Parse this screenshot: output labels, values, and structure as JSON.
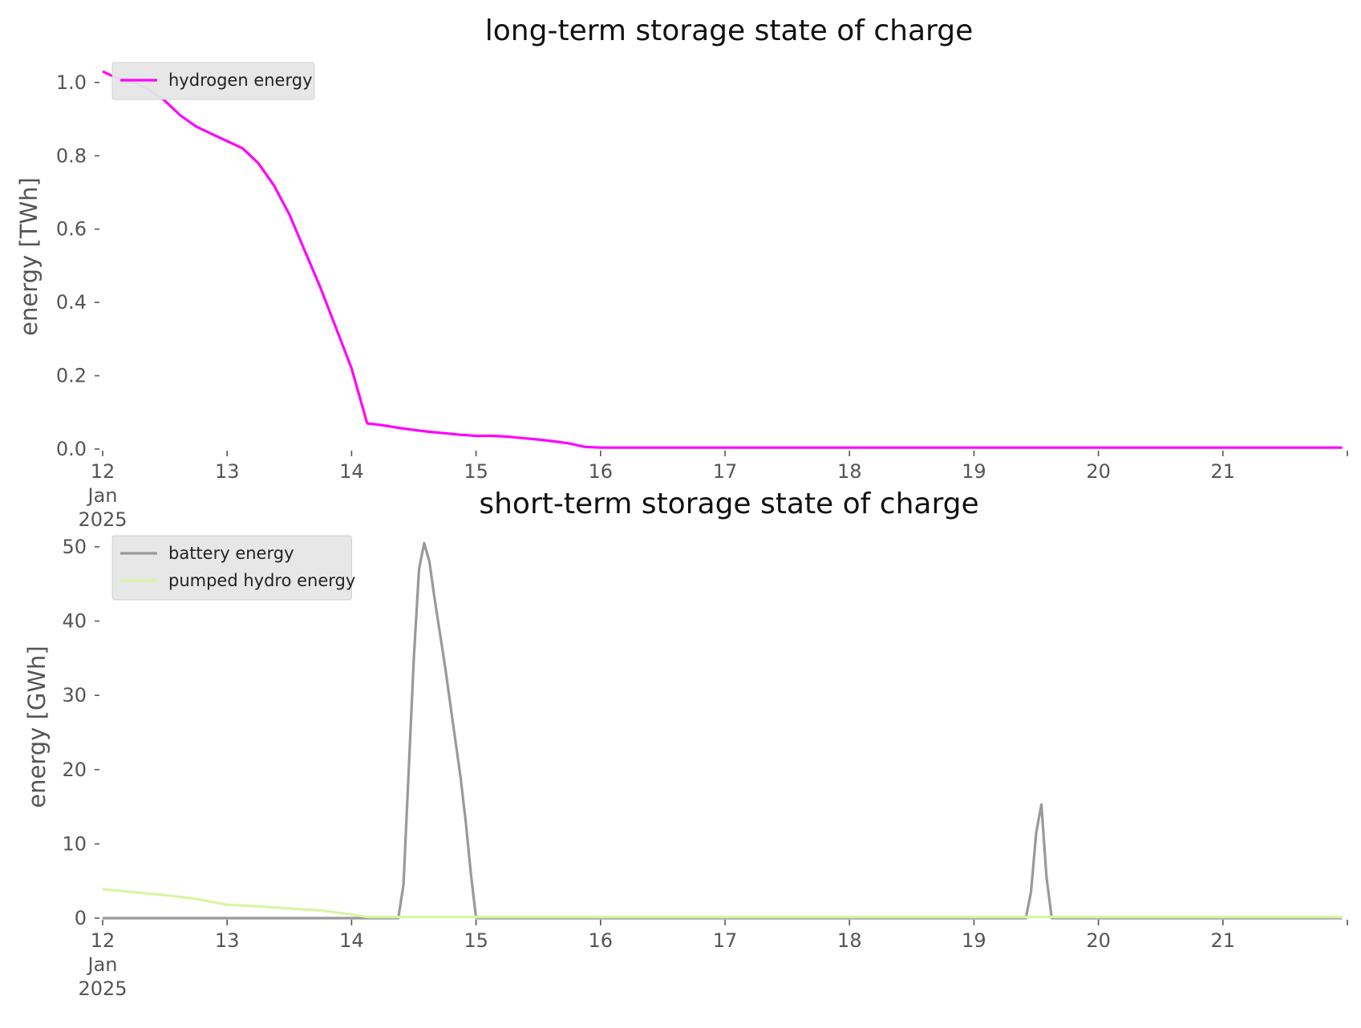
{
  "chart_data": [
    {
      "type": "line",
      "title": "long-term storage state of charge",
      "xlabel": "",
      "ylabel": "energy [TWh]",
      "xlim": [
        "2025-01-12 00:00",
        "2025-01-22 00:00"
      ],
      "ylim": [
        0,
        1.05
      ],
      "yticks": [
        "0.0",
        "0.2",
        "0.4",
        "0.6",
        "0.8",
        "1.0"
      ],
      "xticks": [
        {
          "major": "12",
          "minor1": "Jan",
          "minor2": "2025"
        },
        {
          "major": "13"
        },
        {
          "major": "14"
        },
        {
          "major": "15"
        },
        {
          "major": "16"
        },
        {
          "major": "17"
        },
        {
          "major": "18"
        },
        {
          "major": "19"
        },
        {
          "major": "20"
        },
        {
          "major": "21"
        }
      ],
      "grid": false,
      "legend_position": "top-left",
      "series": [
        {
          "name": "hydrogen energy",
          "color": "#ff00ff",
          "points": [
            [
              "2025-01-12 00:00",
              1.03
            ],
            [
              "2025-01-12 03:00",
              1.01
            ],
            [
              "2025-01-12 06:00",
              1.0
            ],
            [
              "2025-01-12 09:00",
              0.98
            ],
            [
              "2025-01-12 12:00",
              0.95
            ],
            [
              "2025-01-12 15:00",
              0.91
            ],
            [
              "2025-01-12 18:00",
              0.88
            ],
            [
              "2025-01-12 21:00",
              0.86
            ],
            [
              "2025-01-13 00:00",
              0.84
            ],
            [
              "2025-01-13 03:00",
              0.82
            ],
            [
              "2025-01-13 06:00",
              0.78
            ],
            [
              "2025-01-13 09:00",
              0.72
            ],
            [
              "2025-01-13 12:00",
              0.64
            ],
            [
              "2025-01-13 15:00",
              0.54
            ],
            [
              "2025-01-13 18:00",
              0.44
            ],
            [
              "2025-01-13 21:00",
              0.33
            ],
            [
              "2025-01-14 00:00",
              0.22
            ],
            [
              "2025-01-14 03:00",
              0.07
            ],
            [
              "2025-01-14 06:00",
              0.065
            ],
            [
              "2025-01-14 09:00",
              0.058
            ],
            [
              "2025-01-14 12:00",
              0.052
            ],
            [
              "2025-01-14 15:00",
              0.047
            ],
            [
              "2025-01-14 18:00",
              0.043
            ],
            [
              "2025-01-14 21:00",
              0.039
            ],
            [
              "2025-01-15 00:00",
              0.036
            ],
            [
              "2025-01-15 03:00",
              0.036
            ],
            [
              "2025-01-15 06:00",
              0.034
            ],
            [
              "2025-01-15 09:00",
              0.03
            ],
            [
              "2025-01-15 12:00",
              0.026
            ],
            [
              "2025-01-15 15:00",
              0.021
            ],
            [
              "2025-01-15 18:00",
              0.015
            ],
            [
              "2025-01-15 21:00",
              0.006
            ],
            [
              "2025-01-16 00:00",
              0.004
            ],
            [
              "2025-01-21 23:00",
              0.004
            ]
          ]
        }
      ]
    },
    {
      "type": "line",
      "title": "short-term storage state of charge",
      "xlabel": "",
      "ylabel": "energy [GWh]",
      "xlim": [
        "2025-01-12 00:00",
        "2025-01-22 00:00"
      ],
      "ylim": [
        0,
        51.5
      ],
      "yticks": [
        "0",
        "10",
        "20",
        "30",
        "40",
        "50"
      ],
      "xticks": [
        {
          "major": "12",
          "minor1": "Jan",
          "minor2": "2025"
        },
        {
          "major": "13"
        },
        {
          "major": "14"
        },
        {
          "major": "15"
        },
        {
          "major": "16"
        },
        {
          "major": "17"
        },
        {
          "major": "18"
        },
        {
          "major": "19"
        },
        {
          "major": "20"
        },
        {
          "major": "21"
        }
      ],
      "grid": false,
      "legend_position": "top-left",
      "series": [
        {
          "name": "battery energy",
          "color": "#999999",
          "points": [
            [
              "2025-01-12 00:00",
              0
            ],
            [
              "2025-01-14 09:00",
              0
            ],
            [
              "2025-01-14 10:00",
              4.5
            ],
            [
              "2025-01-14 12:00",
              35
            ],
            [
              "2025-01-14 13:00",
              47
            ],
            [
              "2025-01-14 14:00",
              50.5
            ],
            [
              "2025-01-14 15:00",
              48
            ],
            [
              "2025-01-14 16:00",
              43
            ],
            [
              "2025-01-14 18:00",
              34
            ],
            [
              "2025-01-14 20:00",
              24
            ],
            [
              "2025-01-14 21:00",
              19
            ],
            [
              "2025-01-14 22:00",
              13
            ],
            [
              "2025-01-14 23:00",
              6
            ],
            [
              "2025-01-15 00:00",
              0
            ],
            [
              "2025-01-19 10:00",
              0
            ],
            [
              "2025-01-19 11:00",
              3.5
            ],
            [
              "2025-01-19 12:00",
              11.5
            ],
            [
              "2025-01-19 13:00",
              15.3
            ],
            [
              "2025-01-19 14:00",
              5.5
            ],
            [
              "2025-01-19 15:00",
              0
            ],
            [
              "2025-01-21 23:00",
              0
            ]
          ]
        },
        {
          "name": "pumped hydro energy",
          "color": "#d8f5a2",
          "points": [
            [
              "2025-01-12 00:00",
              3.9
            ],
            [
              "2025-01-12 06:00",
              3.5
            ],
            [
              "2025-01-12 12:00",
              3.1
            ],
            [
              "2025-01-12 18:00",
              2.6
            ],
            [
              "2025-01-13 00:00",
              1.8
            ],
            [
              "2025-01-13 06:00",
              1.6
            ],
            [
              "2025-01-13 12:00",
              1.3
            ],
            [
              "2025-01-13 18:00",
              1.05
            ],
            [
              "2025-01-14 00:00",
              0.5
            ],
            [
              "2025-01-14 03:00",
              0.15
            ],
            [
              "2025-01-21 23:00",
              0.15
            ]
          ]
        }
      ]
    }
  ]
}
